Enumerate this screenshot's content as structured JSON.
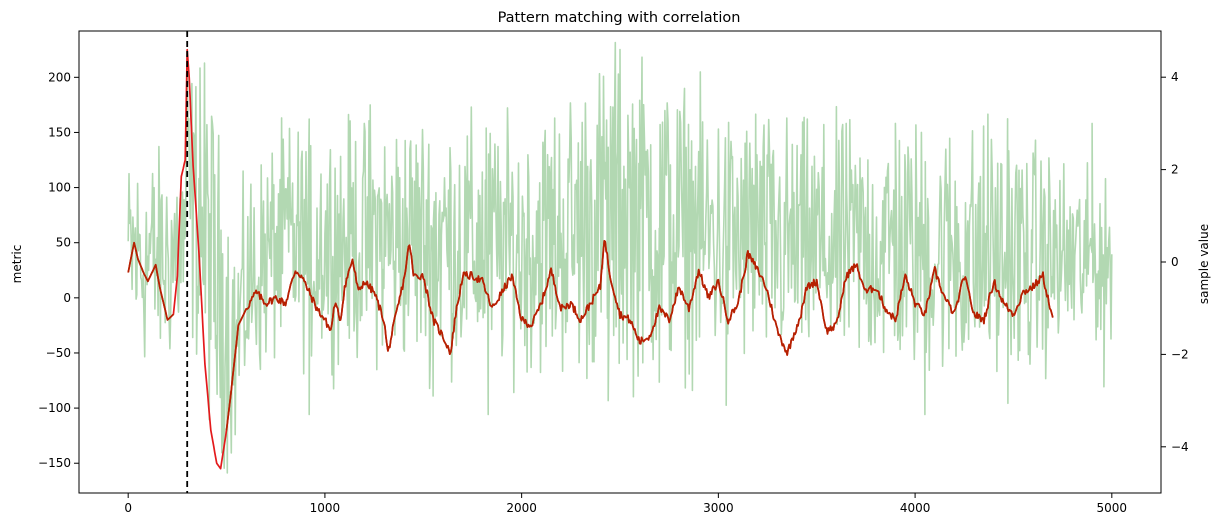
{
  "chart_data": {
    "type": "line",
    "title": "Pattern matching with correlation",
    "xlabel": "",
    "ylabel_left": "metric",
    "ylabel_right": "sample value",
    "xlim": [
      -250,
      5250
    ],
    "ylim_left": [
      -177,
      242
    ],
    "ylim_right": [
      -5.0,
      5.0
    ],
    "x_ticks": [
      0,
      1000,
      2000,
      3000,
      4000,
      5000
    ],
    "y_left_ticks": [
      -150,
      -100,
      -50,
      0,
      50,
      100,
      150,
      200
    ],
    "y_right_ticks": [
      -4,
      -2,
      0,
      2,
      4
    ],
    "grid": false,
    "marker": {
      "x": 300,
      "style": "dashed",
      "color": "#000000"
    },
    "series": [
      {
        "axis": "right",
        "kind": "noise_band",
        "color": "#b2d8b2",
        "x_range": [
          0,
          5000
        ],
        "envelope": {
          "x": [
            0,
            100,
            200,
            280,
            300,
            350,
            400,
            450,
            500,
            550,
            600,
            700,
            800,
            900,
            1000,
            1500,
            2000,
            2500,
            3000,
            3500,
            4000,
            4500,
            5000
          ],
          "low": [
            -1.9,
            -2.3,
            -2.2,
            -1.8,
            -1.6,
            -2.0,
            -3.2,
            -4.1,
            -4.3,
            -4.3,
            -2.8,
            -2.3,
            -2.0,
            -2.1,
            -2.0,
            -2.2,
            -2.3,
            -2.5,
            -2.2,
            -2.2,
            -2.4,
            -2.6,
            -1.5
          ],
          "high": [
            2.2,
            2.4,
            2.3,
            2.6,
            4.5,
            4.0,
            4.2,
            3.0,
            1.5,
            0.6,
            1.8,
            2.4,
            2.9,
            2.9,
            2.9,
            3.2,
            2.9,
            4.6,
            3.3,
            2.9,
            3.0,
            2.8,
            1.5
          ]
        },
        "spikes_high": [
          [
            2500,
            4.6
          ],
          [
            365,
            4.2
          ],
          [
            300,
            4.5
          ],
          [
            1230,
            3.4
          ],
          [
            2600,
            3.5
          ],
          [
            3190,
            3.2
          ],
          [
            4370,
            3.2
          ],
          [
            3900,
            3.0
          ],
          [
            1820,
            2.9
          ],
          [
            3650,
            3.0
          ],
          [
            4900,
            3.0
          ],
          [
            4470,
            3.1
          ]
        ],
        "spikes_low": [
          [
            1830,
            -3.3
          ],
          [
            3040,
            -3.1
          ],
          [
            4050,
            -3.3
          ],
          [
            4960,
            -2.7
          ],
          [
            2440,
            -3.0
          ],
          [
            2700,
            -2.6
          ],
          [
            1550,
            -2.9
          ],
          [
            920,
            -3.3
          ]
        ]
      },
      {
        "axis": "left",
        "kind": "line",
        "color": "#e31a1c",
        "x": [
          0,
          30,
          50,
          80,
          100,
          140,
          160,
          180,
          200,
          230,
          250,
          270,
          290,
          300,
          310,
          330,
          360,
          390,
          420,
          450,
          470,
          500,
          520,
          560,
          600,
          650,
          700,
          750,
          800,
          850,
          880,
          920,
          960,
          1000,
          1030,
          1050,
          1080,
          1100,
          1140,
          1170,
          1200,
          1250,
          1300,
          1320,
          1350,
          1400,
          1430,
          1450,
          1500,
          1550,
          1600,
          1640,
          1660,
          1700,
          1750,
          1800,
          1850,
          1900,
          1950,
          2000,
          2050,
          2100,
          2150,
          2200,
          2250,
          2300,
          2350,
          2400,
          2420,
          2450,
          2500,
          2550,
          2600,
          2650,
          2700,
          2750,
          2800,
          2850,
          2900,
          2950,
          3000,
          3050,
          3100,
          3150,
          3200,
          3230,
          3250,
          3300,
          3350,
          3380,
          3420,
          3450,
          3500,
          3550,
          3600,
          3650,
          3700,
          3750,
          3800,
          3850,
          3900,
          3950,
          4000,
          4050,
          4100,
          4150,
          4200,
          4250,
          4300,
          4350,
          4400,
          4450,
          4500,
          4550,
          4600,
          4650,
          4700
        ],
        "y": [
          23,
          50,
          35,
          22,
          15,
          30,
          10,
          -5,
          -20,
          -15,
          20,
          110,
          125,
          225,
          200,
          120,
          40,
          -60,
          -120,
          -150,
          -155,
          -120,
          -90,
          -25,
          -10,
          5,
          -5,
          0,
          -5,
          25,
          20,
          5,
          -10,
          -20,
          -30,
          -5,
          -20,
          10,
          35,
          5,
          15,
          5,
          -20,
          -50,
          -25,
          15,
          50,
          20,
          20,
          -20,
          -35,
          -50,
          -20,
          20,
          20,
          15,
          -10,
          5,
          20,
          -20,
          -25,
          -5,
          25,
          -10,
          -5,
          -20,
          -5,
          10,
          55,
          20,
          -15,
          -20,
          -40,
          -35,
          -10,
          -20,
          10,
          -10,
          25,
          0,
          15,
          -20,
          -5,
          40,
          25,
          15,
          5,
          -30,
          -50,
          -35,
          -15,
          10,
          15,
          -30,
          -25,
          20,
          30,
          5,
          10,
          -10,
          -20,
          20,
          -5,
          -15,
          25,
          0,
          -15,
          20,
          -15,
          -20,
          15,
          -5,
          -15,
          5,
          10,
          20,
          -20
        ]
      },
      {
        "axis": "left",
        "kind": "line_overlay",
        "color": "#b22200",
        "x_from": 500
      }
    ]
  }
}
